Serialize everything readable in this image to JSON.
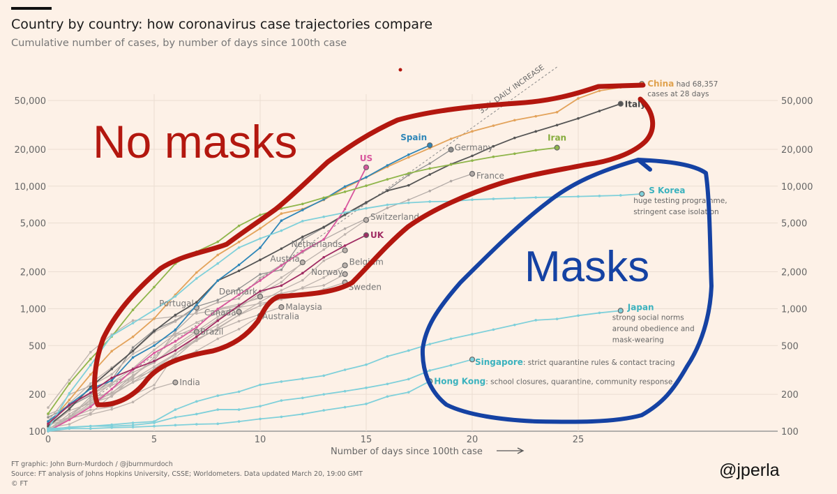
{
  "header": {
    "title": "Country by country: how coronavirus case trajectories compare",
    "subtitle": "Cumulative number of cases, by number of days since 100th case"
  },
  "footer": {
    "credit": "FT graphic: John Burn-Murdoch / @jburnmurdoch",
    "source": "Source: FT analysis of Johns Hopkins University, CSSE; Worldometers. Data updated March 20, 19:00 GMT",
    "copyright": "© FT"
  },
  "overlay": {
    "no_masks": "No masks",
    "masks": "Masks",
    "handle": "@jperla",
    "red_color": "#b3170f",
    "blue_color": "#1542a3"
  },
  "chart_data": {
    "type": "line",
    "title": "Country by country: how coronavirus case trajectories compare",
    "subtitle": "Cumulative number of cases, by number of days since 100th case",
    "xlabel": "Number of days since 100th case",
    "ylabel": "",
    "x_ticks": [
      0,
      5,
      10,
      15,
      20,
      25
    ],
    "y_ticks": [
      100,
      200,
      500,
      1000,
      2000,
      5000,
      10000,
      20000,
      50000
    ],
    "y_tick_labels": [
      "100",
      "200",
      "500",
      "1,000",
      "2,000",
      "5,000",
      "10,000",
      "20,000",
      "50,000"
    ],
    "y_scale": "log",
    "xlim": [
      0,
      34
    ],
    "ylim": [
      100,
      75000
    ],
    "grid": true,
    "reference_line": {
      "label": "33% DAILY INCREASE",
      "daily_growth": 0.33
    },
    "series": [
      {
        "name": "China",
        "color": "#e3a35b",
        "label_color": "#e0a24e",
        "bold": true,
        "note": "had 68,357",
        "note2": "cases at 28 days",
        "values": [
          114,
          180,
          290,
          450,
          590,
          830,
          1300,
          1975,
          2744,
          3500,
          4515,
          5974,
          6500,
          7711,
          9692,
          11791,
          14380,
          17205,
          20438,
          24324,
          28018,
          31161,
          34546,
          37198,
          40171,
          52000,
          60000,
          64000,
          68357
        ]
      },
      {
        "name": "Italy",
        "color": "#555555",
        "label_color": "#444444",
        "bold": true,
        "values": [
          110,
          152,
          229,
          322,
          453,
          655,
          888,
          1128,
          1694,
          2036,
          2502,
          3089,
          3858,
          4636,
          5883,
          7375,
          9172,
          10149,
          12462,
          15113,
          17660,
          21157,
          24747,
          27980,
          31506,
          35713,
          41035,
          47021
        ]
      },
      {
        "name": "Spain",
        "color": "#2e86b8",
        "label_color": "#2e86b8",
        "bold": true,
        "values": [
          120,
          165,
          222,
          259,
          400,
          500,
          673,
          1073,
          1695,
          2277,
          3146,
          5232,
          6391,
          7798,
          9942,
          11826,
          14769,
          18077,
          21571
        ]
      },
      {
        "name": "US",
        "color": "#d8569d",
        "label_color": "#d8569d",
        "bold": true,
        "values": [
          100,
          124,
          158,
          221,
          319,
          435,
          541,
          704,
          994,
          1301,
          1697,
          2247,
          2943,
          3680,
          6500,
          14250
        ]
      },
      {
        "name": "Iran",
        "color": "#8fb54a",
        "label_color": "#86ac3c",
        "bold": true,
        "values": [
          139,
          245,
          388,
          593,
          978,
          1501,
          2336,
          2922,
          3513,
          4747,
          5823,
          6566,
          7161,
          8042,
          9000,
          10075,
          11364,
          12729,
          13938,
          14991,
          16169,
          17361,
          18407,
          19644,
          20610
        ]
      },
      {
        "name": "Germany",
        "color": "#8f8f8f",
        "label_color": "#777777",
        "bold": false,
        "values": [
          130,
          159,
          196,
          262,
          482,
          670,
          799,
          1040,
          1176,
          1457,
          1908,
          2078,
          3675,
          4585,
          5795,
          7272,
          9257,
          12327,
          15320,
          19848
        ]
      },
      {
        "name": "France",
        "color": "#b2aaa6",
        "label_color": "#777777",
        "bold": false,
        "values": [
          100,
          130,
          191,
          204,
          285,
          377,
          653,
          949,
          1126,
          1209,
          1784,
          2281,
          2876,
          3661,
          4499,
          5423,
          6633,
          7730,
          9134,
          10995,
          12612
        ]
      },
      {
        "name": "S Korea",
        "color": "#7fd0da",
        "label_color": "#3bb2be",
        "bold": true,
        "note": "huge testing programme,",
        "note2": "stringent case isolation",
        "values": [
          104,
          204,
          346,
          602,
          763,
          977,
          1261,
          1766,
          2337,
          3150,
          3736,
          4335,
          5186,
          5621,
          6088,
          6593,
          7041,
          7314,
          7478,
          7513,
          7755,
          7869,
          7979,
          8086,
          8162,
          8236,
          8320,
          8413,
          8652
        ]
      },
      {
        "name": "Japan",
        "color": "#7fd0da",
        "label_color": "#3bb2be",
        "bold": true,
        "note": "strong social norms",
        "note2": "around obedience and",
        "note3": "mask-wearing",
        "values": [
          105,
          107,
          110,
          113,
          117,
          120,
          150,
          175,
          195,
          210,
          239,
          254,
          268,
          284,
          317,
          349,
          408,
          455,
          514,
          568,
          619,
          675,
          737,
          806,
          824,
          878,
          924,
          963
        ]
      },
      {
        "name": "Singapore",
        "color": "#7fd0da",
        "label_color": "#3bb2be",
        "bold": true,
        "note": ": strict quarantine rules & contact tracing",
        "values": [
          102,
          108,
          110,
          110,
          112,
          117,
          130,
          138,
          150,
          150,
          160,
          178,
          187,
          200,
          212,
          226,
          243,
          266,
          313,
          345,
          385
        ]
      },
      {
        "name": "Hong Kong",
        "color": "#7fd0da",
        "label_color": "#3bb2be",
        "bold": true,
        "note": ": school closures, quarantine, community response",
        "values": [
          100,
          105,
          105,
          107,
          108,
          110,
          112,
          114,
          115,
          120,
          126,
          131,
          138,
          148,
          157,
          167,
          192,
          208,
          256
        ]
      },
      {
        "name": "UK",
        "color": "#a02c63",
        "label_color": "#a02c63",
        "bold": true,
        "values": [
          115,
          163,
          206,
          273,
          321,
          373,
          456,
          590,
          797,
          1061,
          1391,
          1543,
          1950,
          2626,
          3269,
          3983
        ]
      },
      {
        "name": "Switzerland",
        "color": "#bdb3ad",
        "label_color": "#777777",
        "bold": false,
        "values": [
          100,
          130,
          169,
          220,
          286,
          372,
          483,
          628,
          817,
          1062,
          1380,
          1795,
          2333,
          3033,
          4043,
          5300
        ]
      },
      {
        "name": "Netherlands",
        "color": "#bdb3ad",
        "label_color": "#777777",
        "bold": false,
        "values": [
          100,
          128,
          163,
          207,
          264,
          337,
          429,
          547,
          698,
          890,
          1135,
          1413,
          1705,
          2460,
          2994
        ]
      },
      {
        "name": "Austria",
        "color": "#bdb3ad",
        "label_color": "#777777",
        "bold": false,
        "values": [
          104,
          131,
          182,
          246,
          302,
          361,
          504,
          655,
          860,
          1018,
          1332,
          1646,
          2388
        ]
      },
      {
        "name": "Belgium",
        "color": "#bdb3ad",
        "label_color": "#777777",
        "bold": false,
        "values": [
          109,
          169,
          200,
          239,
          267,
          314,
          399,
          559,
          689,
          886,
          1058,
          1243,
          1486,
          1795,
          2257
        ]
      },
      {
        "name": "Norway",
        "color": "#bdb3ad",
        "label_color": "#777777",
        "bold": false,
        "values": [
          108,
          147,
          169,
          192,
          277,
          400,
          598,
          702,
          996,
          1090,
          1221,
          1333,
          1463,
          1550,
          1914
        ]
      },
      {
        "name": "Sweden",
        "color": "#bdb3ad",
        "label_color": "#777777",
        "bold": false,
        "values": [
          137,
          161,
          203,
          248,
          326,
          461,
          620,
          771,
          923,
          1022,
          1103,
          1190,
          1279,
          1439,
          1639
        ]
      },
      {
        "name": "Denmark",
        "color": "#bdb3ad",
        "label_color": "#777777",
        "bold": false,
        "values": [
          156,
          262,
          442,
          615,
          801,
          827,
          864,
          914,
          977,
          1057,
          1255
        ]
      },
      {
        "name": "Malaysia",
        "color": "#bdb3ad",
        "label_color": "#777777",
        "bold": false,
        "values": [
          117,
          129,
          149,
          158,
          197,
          238,
          428,
          566,
          673,
          790,
          900,
          1030
        ]
      },
      {
        "name": "Australia",
        "color": "#bdb3ad",
        "label_color": "#777777",
        "bold": false,
        "values": [
          112,
          127,
          140,
          197,
          250,
          297,
          377,
          452,
          568,
          681,
          876
        ]
      },
      {
        "name": "Canada",
        "color": "#bdb3ad",
        "label_color": "#777777",
        "bold": false,
        "values": [
          103,
          138,
          176,
          201,
          252,
          324,
          424,
          598,
          736,
          943
        ]
      },
      {
        "name": "Brazil",
        "color": "#bdb3ad",
        "label_color": "#777777",
        "bold": false,
        "values": [
          121,
          200,
          234,
          291,
          428,
          529,
          621,
          647
        ]
      },
      {
        "name": "Portugal",
        "color": "#bdb3ad",
        "label_color": "#777777",
        "bold": false,
        "values": [
          112,
          169,
          245,
          331,
          448,
          642,
          785,
          1020
        ]
      },
      {
        "name": "India",
        "color": "#bdb3ad",
        "label_color": "#777777",
        "bold": false,
        "values": [
          107,
          114,
          137,
          151,
          173,
          223,
          250
        ]
      }
    ]
  }
}
